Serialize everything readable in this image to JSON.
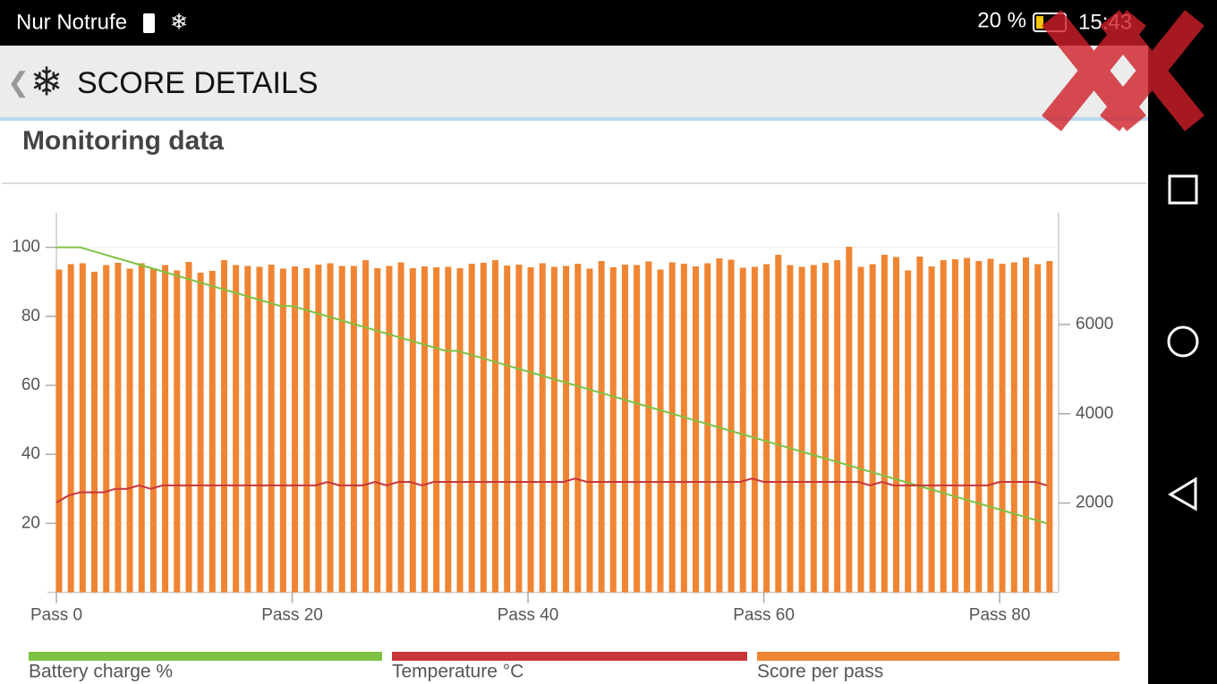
{
  "status_bar": {
    "carrier": "Nur Notrufe",
    "battery": "20 %",
    "time": "15:43"
  },
  "app_bar": {
    "title": "SCORE DETAILS"
  },
  "card": {
    "title": "Monitoring data"
  },
  "chart_data": {
    "type": "combo",
    "x": [
      0,
      1,
      2,
      3,
      4,
      5,
      6,
      7,
      8,
      9,
      10,
      11,
      12,
      13,
      14,
      15,
      16,
      17,
      18,
      19,
      20,
      21,
      22,
      23,
      24,
      25,
      26,
      27,
      28,
      29,
      30,
      31,
      32,
      33,
      34,
      35,
      36,
      37,
      38,
      39,
      40,
      41,
      42,
      43,
      44,
      45,
      46,
      47,
      48,
      49,
      50,
      51,
      52,
      53,
      54,
      55,
      56,
      57,
      58,
      59,
      60,
      61,
      62,
      63,
      64,
      65,
      66,
      67,
      68,
      69,
      70,
      71,
      72,
      73,
      74,
      75,
      76,
      77,
      78,
      79,
      80,
      81,
      82,
      83,
      84
    ],
    "xlim": [
      0,
      85
    ],
    "xticks": [
      {
        "value": 0,
        "label": "Pass 0"
      },
      {
        "value": 20,
        "label": "Pass 20"
      },
      {
        "value": 40,
        "label": "Pass 40"
      },
      {
        "value": 60,
        "label": "Pass 60"
      },
      {
        "value": 80,
        "label": "Pass 80"
      }
    ],
    "ylim": [
      0,
      110
    ],
    "yticks": [
      20,
      40,
      60,
      80,
      100
    ],
    "y2lim": [
      0,
      8500
    ],
    "y2ticks": [
      2000,
      4000,
      6000
    ],
    "grid": true,
    "series": [
      {
        "name": "Battery charge %",
        "color": "#7dc242",
        "type": "line",
        "values": [
          100,
          100,
          100,
          99,
          98,
          97,
          96,
          95,
          94,
          93,
          92,
          91,
          90,
          89,
          88,
          87,
          86,
          85,
          84,
          83,
          83,
          82,
          81,
          80,
          79,
          78,
          77,
          76,
          75,
          74,
          73,
          72,
          71,
          70,
          70,
          69,
          68,
          67,
          66,
          65,
          64,
          63,
          62,
          61,
          60,
          59,
          58,
          57,
          56,
          55,
          54,
          53,
          52,
          51,
          50,
          49,
          48,
          47,
          46,
          45,
          44,
          43,
          42,
          41,
          40,
          39,
          38,
          37,
          36,
          35,
          34,
          33,
          32,
          31,
          30,
          29,
          28,
          27,
          26,
          25,
          24,
          23,
          22,
          21,
          20
        ]
      },
      {
        "name": "Temperature °C",
        "color": "#c8363a",
        "type": "line",
        "values": [
          26,
          28,
          29,
          29,
          29,
          30,
          30,
          31,
          30,
          31,
          31,
          31,
          31,
          31,
          31,
          31,
          31,
          31,
          31,
          31,
          31,
          31,
          31,
          32,
          31,
          31,
          31,
          32,
          31,
          32,
          32,
          31,
          32,
          32,
          32,
          32,
          32,
          32,
          32,
          32,
          32,
          32,
          32,
          32,
          33,
          32,
          32,
          32,
          32,
          32,
          32,
          32,
          32,
          32,
          32,
          32,
          32,
          32,
          32,
          33,
          32,
          32,
          32,
          32,
          32,
          32,
          32,
          32,
          32,
          31,
          32,
          31,
          31,
          31,
          31,
          31,
          31,
          31,
          31,
          31,
          32,
          32,
          32,
          32,
          31
        ]
      },
      {
        "name": "Score per pass",
        "color": "#ef8533",
        "type": "bar",
        "axis": "y2",
        "values": [
          7230,
          7350,
          7370,
          7180,
          7330,
          7380,
          7250,
          7370,
          7260,
          7330,
          7210,
          7400,
          7160,
          7200,
          7440,
          7330,
          7310,
          7290,
          7340,
          7250,
          7300,
          7260,
          7340,
          7370,
          7310,
          7310,
          7440,
          7260,
          7310,
          7390,
          7260,
          7300,
          7280,
          7290,
          7260,
          7360,
          7380,
          7440,
          7320,
          7340,
          7280,
          7370,
          7290,
          7310,
          7360,
          7250,
          7420,
          7280,
          7340,
          7330,
          7410,
          7230,
          7390,
          7360,
          7300,
          7370,
          7480,
          7450,
          7270,
          7290,
          7350,
          7560,
          7330,
          7290,
          7330,
          7380,
          7440,
          7740,
          7290,
          7350,
          7560,
          7510,
          7210,
          7520,
          7300,
          7440,
          7460,
          7490,
          7420,
          7470,
          7360,
          7390,
          7500,
          7350,
          7420
        ]
      }
    ]
  }
}
